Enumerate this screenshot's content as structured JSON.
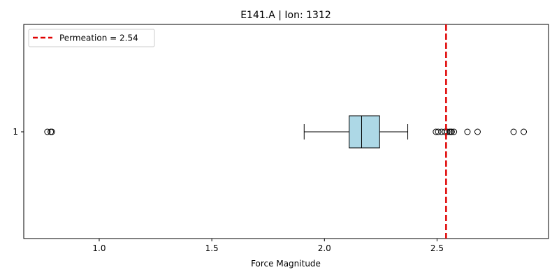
{
  "chart_data": {
    "type": "boxplot",
    "orientation": "horizontal",
    "title": "E141.A | Ion: 1312",
    "xlabel": "Force Magnitude",
    "ylabel": "",
    "xlim": [
      0.665,
      2.995
    ],
    "xticks": [
      1.0,
      1.5,
      2.0,
      2.5
    ],
    "xtick_labels": [
      "1.0",
      "1.5",
      "2.0",
      "2.5"
    ],
    "categories": [
      "1"
    ],
    "box": {
      "whisker_low": 1.91,
      "q1": 2.11,
      "median": 2.165,
      "q3": 2.245,
      "whisker_high": 2.37
    },
    "outliers": [
      0.77,
      0.785,
      0.79,
      2.495,
      2.505,
      2.52,
      2.535,
      2.545,
      2.555,
      2.56,
      2.565,
      2.575,
      2.635,
      2.68,
      2.84,
      2.885
    ],
    "reference_line": {
      "label": "Permeation = 2.54",
      "value": 2.54,
      "color": "#e00000",
      "style": "dashed"
    },
    "legend": {
      "position": "top-left",
      "entries": [
        "Permeation = 2.54"
      ]
    },
    "grid": false,
    "colors": {
      "box_fill": "#add8e6",
      "line": "#000000",
      "reference": "#e00000"
    }
  }
}
